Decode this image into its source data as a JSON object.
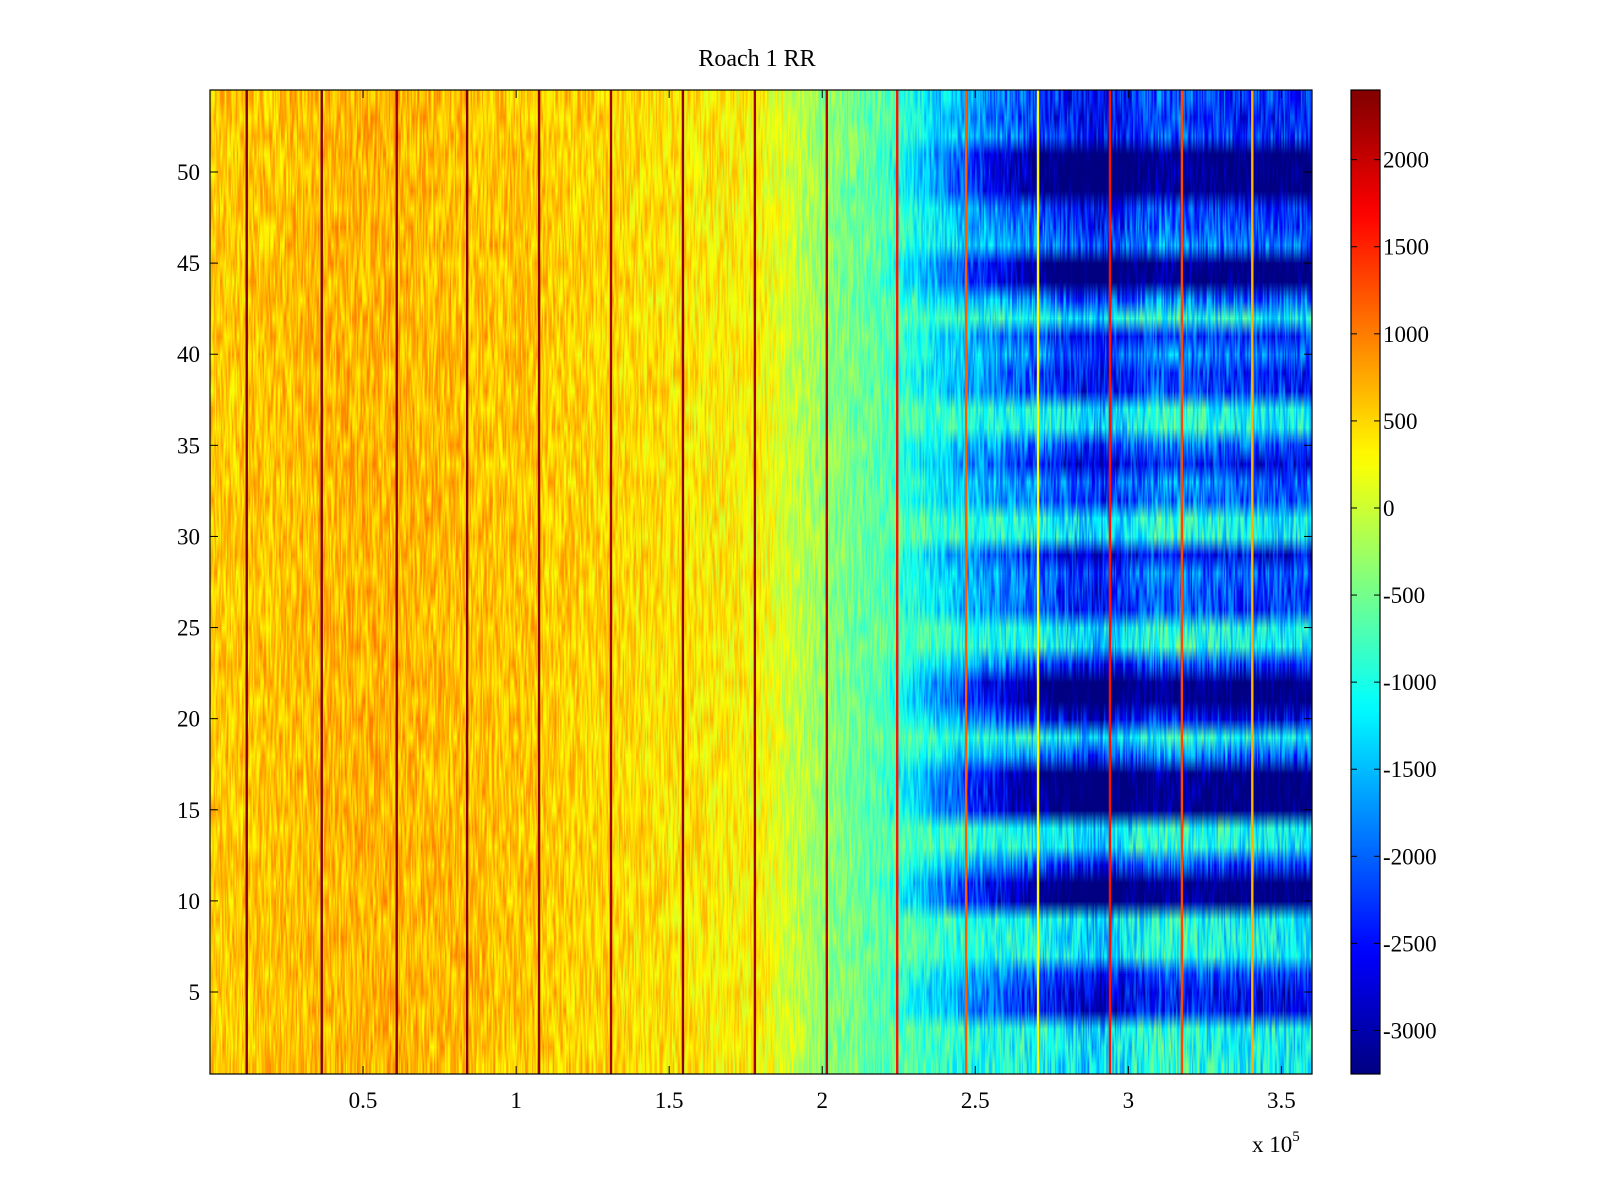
{
  "chart_data": {
    "type": "heatmap",
    "title": "Roach 1 RR",
    "xlabel": "",
    "ylabel": "",
    "x_range": [
      0,
      360000
    ],
    "y_range": [
      0.5,
      54.5
    ],
    "x_ticks": [
      50000,
      100000,
      150000,
      200000,
      250000,
      300000,
      350000
    ],
    "x_tick_labels": [
      "0.5",
      "1",
      "1.5",
      "2",
      "2.5",
      "3",
      "3.5"
    ],
    "x_multiplier": "x 10",
    "x_multiplier_exponent": "5",
    "y_ticks": [
      5,
      10,
      15,
      20,
      25,
      30,
      35,
      40,
      45,
      50
    ],
    "y_tick_labels": [
      "5",
      "10",
      "15",
      "20",
      "25",
      "30",
      "35",
      "40",
      "45",
      "50"
    ],
    "n_rows": 54,
    "colormap": "jet",
    "colorbar": {
      "range": [
        -3250,
        2400
      ],
      "ticks": [
        2000,
        1500,
        1000,
        500,
        0,
        -500,
        -1000,
        -1500,
        -2000,
        -2500,
        -3000
      ],
      "tick_labels": [
        "2000",
        "1500",
        "1000",
        "500",
        "0",
        "-500",
        "-1000",
        "-1500",
        "-2000",
        "-2500",
        "-3000"
      ]
    },
    "column_profile": [
      {
        "x": 0,
        "value": 550
      },
      {
        "x": 50000,
        "value": 700
      },
      {
        "x": 100000,
        "value": 600
      },
      {
        "x": 150000,
        "value": 420
      },
      {
        "x": 180000,
        "value": 300
      },
      {
        "x": 200000,
        "value": -300
      },
      {
        "x": 220000,
        "value": -700
      },
      {
        "x": 245000,
        "value": -1500
      },
      {
        "x": 270000,
        "value": -2100
      },
      {
        "x": 290000,
        "value": -2600
      },
      {
        "x": 310000,
        "value": -2000
      },
      {
        "x": 340000,
        "value": -2300
      },
      {
        "x": 360000,
        "value": -2300
      }
    ],
    "dark_rows": [
      10,
      11,
      15,
      16,
      17,
      21,
      22,
      44,
      45,
      49,
      50,
      51
    ],
    "light_rows": [
      1,
      2,
      3,
      7,
      8,
      9,
      13,
      14,
      19,
      24,
      25,
      30,
      31,
      36,
      37,
      42
    ],
    "spike_lines": [
      {
        "x": 12000,
        "value": 2400
      },
      {
        "x": 36500,
        "value": 2400
      },
      {
        "x": 61000,
        "value": 2300
      },
      {
        "x": 84000,
        "value": 2400
      },
      {
        "x": 107500,
        "value": 2300
      },
      {
        "x": 131000,
        "value": 2200
      },
      {
        "x": 154500,
        "value": 2300
      },
      {
        "x": 178000,
        "value": 2200
      },
      {
        "x": 201500,
        "value": 2100
      },
      {
        "x": 224500,
        "value": 1600
      },
      {
        "x": 247000,
        "value": 1200
      },
      {
        "x": 270500,
        "value": 300
      },
      {
        "x": 294000,
        "value": 1600
      },
      {
        "x": 317500,
        "value": 1300
      },
      {
        "x": 340500,
        "value": 700
      }
    ]
  }
}
